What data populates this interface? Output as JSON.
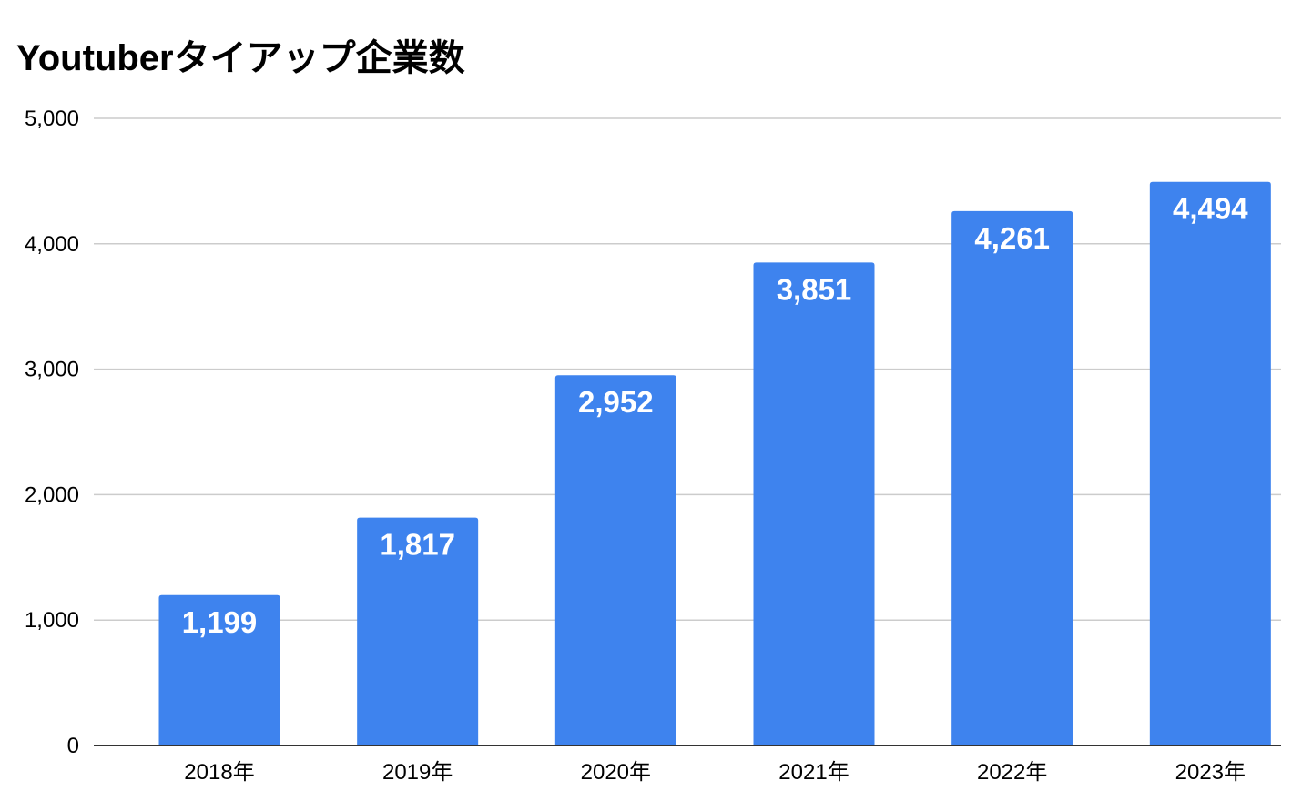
{
  "chart_data": {
    "type": "bar",
    "title": "Youtuberタイアップ企業数",
    "xlabel": "",
    "ylabel": "",
    "categories": [
      "2018年",
      "2019年",
      "2020年",
      "2021年",
      "2022年",
      "2023年"
    ],
    "values": [
      1199,
      1817,
      2952,
      3851,
      4261,
      4494
    ],
    "data_labels": [
      "1,199",
      "1,817",
      "2,952",
      "3,851",
      "4,261",
      "4,494"
    ],
    "ylim": [
      0,
      5000
    ],
    "yticks": [
      0,
      1000,
      2000,
      3000,
      4000,
      5000
    ],
    "ytick_labels": [
      "0",
      "1,000",
      "2,000",
      "3,000",
      "4,000",
      "5,000"
    ],
    "grid": true,
    "legend": "none",
    "colors": {
      "bar": "#3e83ee",
      "gridline": "#cccccc",
      "axis": "#333333",
      "data_label": "#ffffff",
      "text": "#000000"
    }
  }
}
